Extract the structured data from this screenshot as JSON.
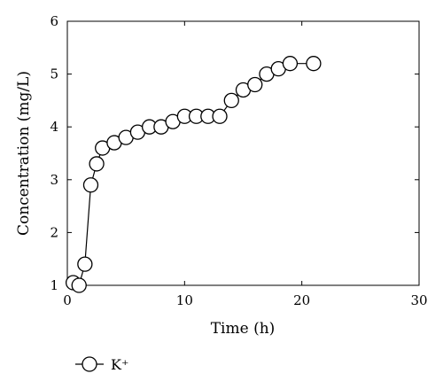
{
  "chart_data": {
    "type": "line",
    "title": "",
    "xlabel": "Time (h)",
    "ylabel": "Concentration (mg/L)",
    "xlim": [
      0,
      30
    ],
    "ylim": [
      1,
      6
    ],
    "xticks": [
      "0",
      "10",
      "20",
      "30"
    ],
    "yticks": [
      "1",
      "2",
      "3",
      "4",
      "5",
      "6"
    ],
    "grid": false,
    "legend_position": "bottom-left",
    "series": [
      {
        "name": "K⁺",
        "marker": "open-circle",
        "color": "#000000",
        "x": [
          0.5,
          1,
          1.5,
          2,
          2.5,
          3,
          4,
          5,
          6,
          7,
          8,
          9,
          10,
          11,
          12,
          13,
          14,
          15,
          16,
          17,
          18,
          19,
          21
        ],
        "y": [
          1.05,
          1.0,
          1.4,
          2.9,
          3.3,
          3.6,
          3.7,
          3.8,
          3.9,
          4.0,
          4.0,
          4.1,
          4.2,
          4.2,
          4.2,
          4.2,
          4.5,
          4.7,
          4.8,
          5.0,
          5.1,
          5.2,
          5.2
        ]
      }
    ]
  }
}
